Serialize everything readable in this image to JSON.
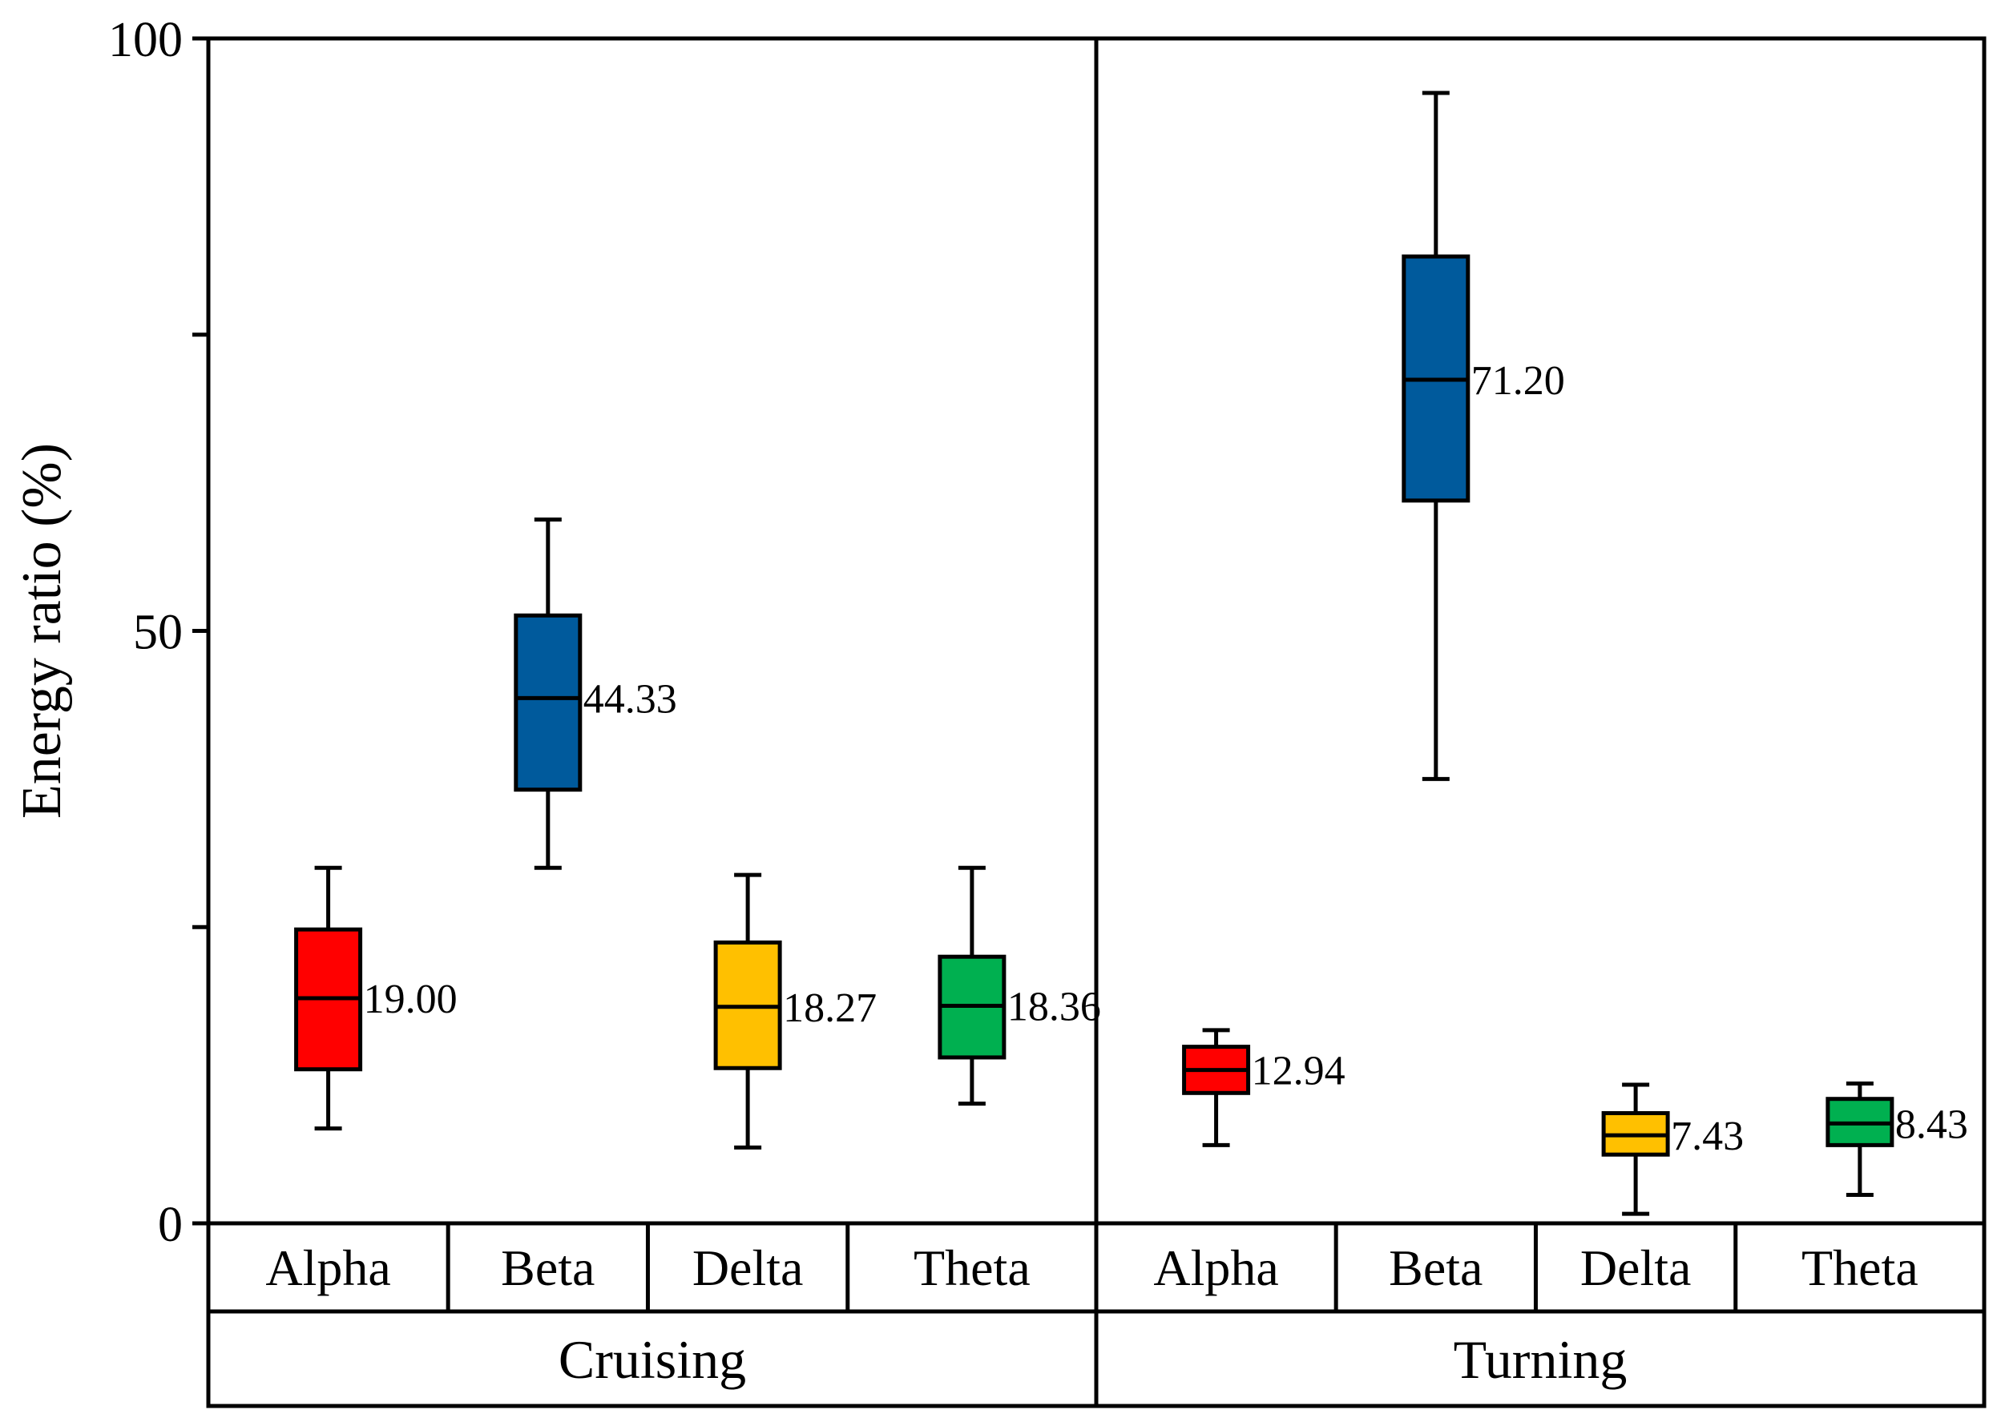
{
  "chart_data": {
    "type": "box",
    "title": "",
    "xlabel": "",
    "ylabel": "Energy ratio (%)",
    "ylim": [
      0,
      100
    ],
    "yticks": [
      {
        "value": 0,
        "label": "0"
      },
      {
        "value": 25,
        "label": ""
      },
      {
        "value": 50,
        "label": "50"
      },
      {
        "value": 75,
        "label": ""
      },
      {
        "value": 100,
        "label": "100"
      }
    ],
    "groups": [
      {
        "name": "Cruising",
        "boxes": [
          {
            "category": "Alpha",
            "whisker_low": 8,
            "q1": 13,
            "median": 19.0,
            "q3": 24.8,
            "whisker_high": 30,
            "median_label": "19.00",
            "color": "#ff0000"
          },
          {
            "category": "Beta",
            "whisker_low": 30,
            "q1": 36.6,
            "median": 44.33,
            "q3": 51.3,
            "whisker_high": 59.4,
            "median_label": "44.33",
            "color": "#005a9c"
          },
          {
            "category": "Delta",
            "whisker_low": 6.4,
            "q1": 13.1,
            "median": 18.27,
            "q3": 23.7,
            "whisker_high": 29.4,
            "median_label": "18.27",
            "color": "#ffc000"
          },
          {
            "category": "Theta",
            "whisker_low": 10.1,
            "q1": 14,
            "median": 18.36,
            "q3": 22.5,
            "whisker_high": 30,
            "median_label": "18.36",
            "color": "#00b050"
          }
        ]
      },
      {
        "name": "Turning",
        "boxes": [
          {
            "category": "Alpha",
            "whisker_low": 6.6,
            "q1": 11,
            "median": 12.94,
            "q3": 14.9,
            "whisker_high": 16.3,
            "median_label": "12.94",
            "color": "#ff0000"
          },
          {
            "category": "Beta",
            "whisker_low": 37.5,
            "q1": 61,
            "median": 71.2,
            "q3": 81.6,
            "whisker_high": 95.4,
            "median_label": "71.20",
            "color": "#005a9c"
          },
          {
            "category": "Delta",
            "whisker_low": 0.8,
            "q1": 5.8,
            "median": 7.43,
            "q3": 9.3,
            "whisker_high": 11.7,
            "median_label": "7.43",
            "color": "#ffc000"
          },
          {
            "category": "Theta",
            "whisker_low": 2.4,
            "q1": 6.6,
            "median": 8.43,
            "q3": 10.5,
            "whisker_high": 11.8,
            "median_label": "8.43",
            "color": "#00b050"
          }
        ]
      }
    ]
  }
}
